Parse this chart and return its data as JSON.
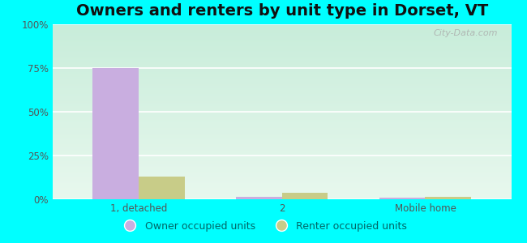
{
  "title": "Owners and renters by unit type in Dorset, VT",
  "categories": [
    "1, detached",
    "2",
    "Mobile home"
  ],
  "owner_values": [
    75.0,
    1.5,
    1.0
  ],
  "renter_values": [
    13.0,
    3.5,
    1.2
  ],
  "owner_color": "#c9aee0",
  "renter_color": "#c8cc88",
  "ylim": [
    0,
    100
  ],
  "yticks": [
    0,
    25,
    50,
    75,
    100
  ],
  "ytick_labels": [
    "0%",
    "25%",
    "50%",
    "75%",
    "100%"
  ],
  "legend_owner": "Owner occupied units",
  "legend_renter": "Renter occupied units",
  "plot_bg_color": "#d8f5e0",
  "outer_bg": "#00ffff",
  "title_fontsize": 14,
  "bar_width": 0.32,
  "watermark": "City-Data.com"
}
